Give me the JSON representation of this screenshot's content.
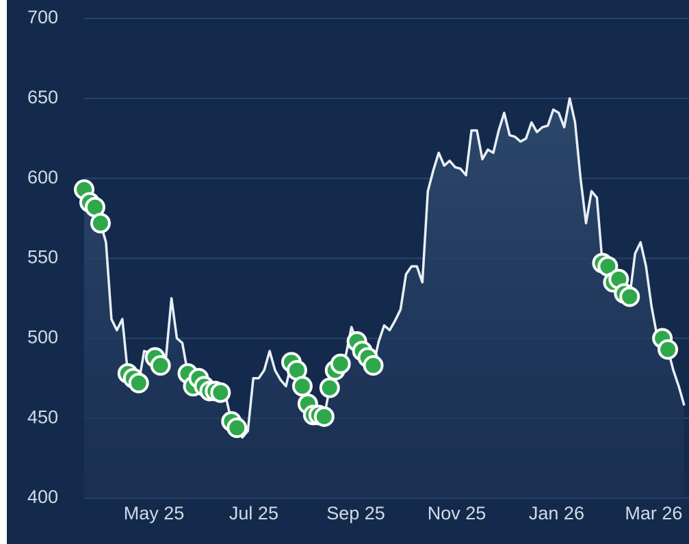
{
  "chart_data": {
    "type": "line",
    "values": [
      593,
      585,
      582,
      572,
      560,
      512,
      505,
      512,
      478,
      475,
      472,
      492,
      491,
      488,
      483,
      488,
      525,
      500,
      497,
      478,
      470,
      475,
      470,
      467,
      467,
      466,
      463,
      448,
      444,
      438,
      442,
      475,
      475,
      480,
      492,
      480,
      474,
      470,
      485,
      480,
      470,
      459,
      452,
      452,
      451,
      469,
      480,
      484,
      490,
      507,
      498,
      492,
      488,
      483,
      498,
      508,
      505,
      511,
      518,
      540,
      545,
      545,
      535,
      592,
      605,
      616,
      608,
      611,
      607,
      606,
      602,
      630,
      630,
      612,
      618,
      616,
      630,
      641,
      627,
      626,
      623,
      625,
      635,
      629,
      632,
      633,
      643,
      641,
      632,
      650,
      635,
      600,
      572,
      592,
      588,
      547,
      545,
      535,
      537,
      528,
      526,
      553,
      560,
      545,
      520,
      502,
      500,
      493,
      480,
      470,
      458
    ],
    "color": "#e9eff6",
    "marker_values": [
      593,
      585,
      582,
      572,
      null,
      null,
      null,
      null,
      478,
      475,
      472,
      null,
      null,
      488,
      483,
      null,
      null,
      null,
      null,
      478,
      470,
      475,
      470,
      467,
      467,
      466,
      null,
      448,
      444,
      null,
      null,
      null,
      null,
      null,
      null,
      null,
      null,
      null,
      485,
      480,
      470,
      459,
      452,
      452,
      451,
      469,
      480,
      484,
      null,
      null,
      498,
      492,
      488,
      483,
      null,
      null,
      null,
      null,
      null,
      null,
      null,
      null,
      null,
      null,
      null,
      null,
      null,
      null,
      null,
      null,
      null,
      null,
      null,
      null,
      null,
      null,
      null,
      null,
      null,
      null,
      null,
      null,
      null,
      null,
      null,
      null,
      null,
      null,
      null,
      null,
      null,
      null,
      null,
      null,
      null,
      547,
      545,
      535,
      537,
      528,
      526,
      null,
      null,
      null,
      null,
      null,
      500,
      493,
      null,
      null,
      null
    ],
    "marker_color": "#2ea84a",
    "xlim": [
      0,
      110
    ],
    "xticks": [
      {
        "value": 12.8,
        "label": "May 25"
      },
      {
        "value": 31.1,
        "label": "Jul 25"
      },
      {
        "value": 49.8,
        "label": "Sep 25"
      },
      {
        "value": 68.3,
        "label": "Nov 25"
      },
      {
        "value": 86.6,
        "label": "Jan 26"
      },
      {
        "value": 104.4,
        "label": "Mar 26"
      }
    ],
    "ylim": [
      400,
      700
    ],
    "yticks": [
      400,
      450,
      500,
      550,
      600,
      650,
      700
    ],
    "grid": true
  }
}
